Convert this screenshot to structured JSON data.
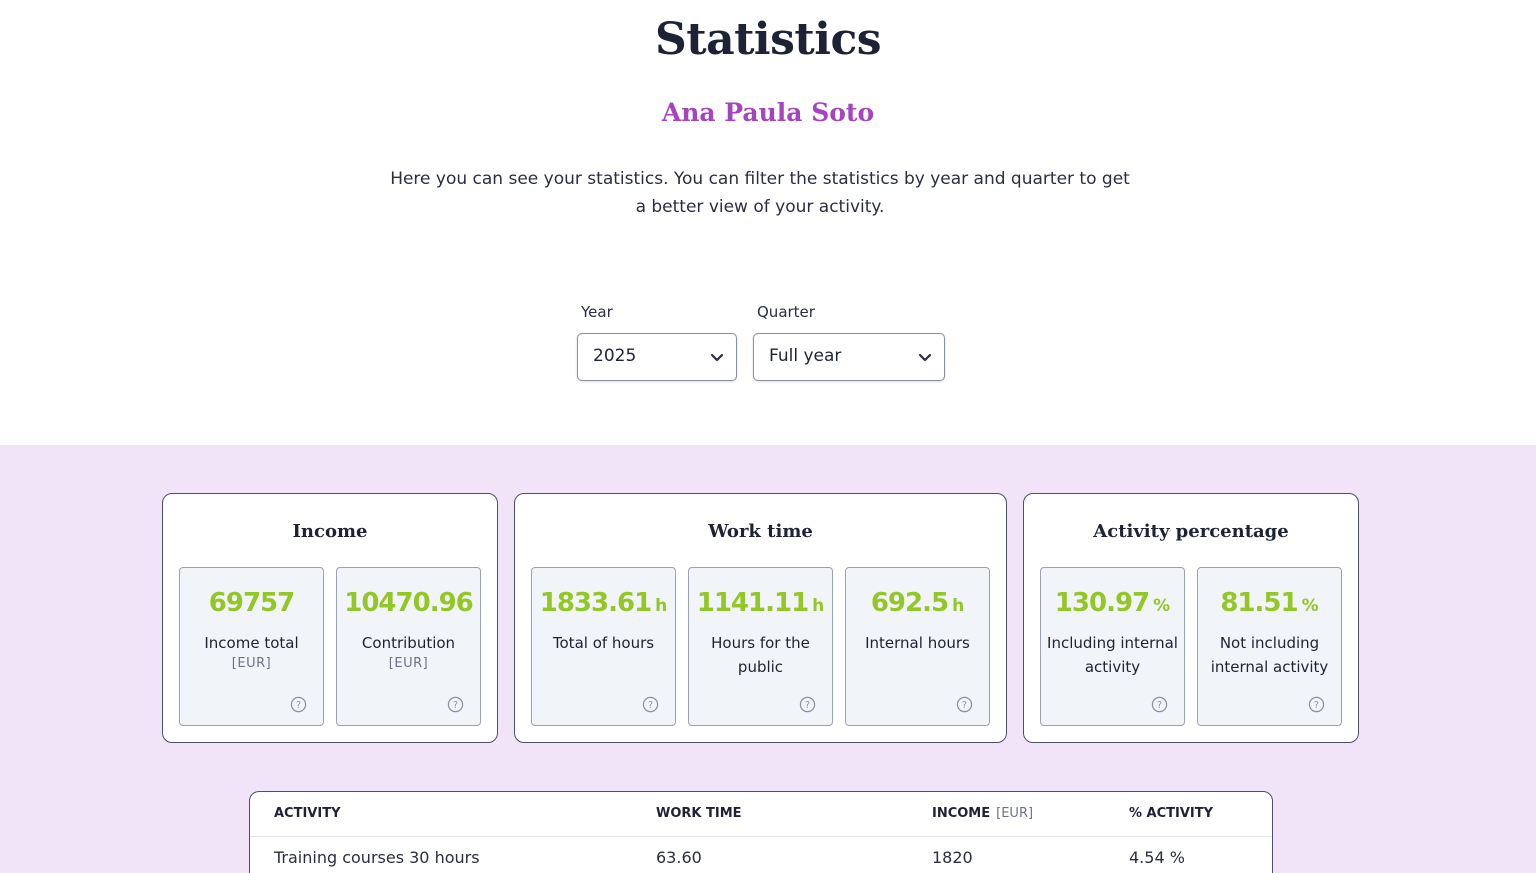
{
  "header": {
    "title": "Statistics",
    "user_name": "Ana Paula Soto",
    "intro": "Here you can see your statistics. You can filter the statistics by year and quarter to get a better view of your activity."
  },
  "filters": {
    "year": {
      "label": "Year",
      "value": "2025",
      "icon": "chevron-down-icon"
    },
    "quarter": {
      "label": "Quarter",
      "value": "Full year",
      "icon": "chevron-down-icon"
    }
  },
  "income": {
    "title": "Income",
    "cards": [
      {
        "value": "69757",
        "unit": "",
        "label": "Income total",
        "sub": "[EUR]"
      },
      {
        "value": "10470.96",
        "unit": "",
        "label": "Contribution",
        "sub": "[EUR]"
      }
    ]
  },
  "work_time": {
    "title": "Work time",
    "cards": [
      {
        "value": "1833.61",
        "unit": "h",
        "label": "Total of hours"
      },
      {
        "value": "1141.11",
        "unit": "h",
        "label": "Hours for the public"
      },
      {
        "value": "692.5",
        "unit": "h",
        "label": "Internal hours"
      }
    ]
  },
  "activity": {
    "title": "Activity percentage",
    "cards": [
      {
        "value": "130.97",
        "unit": "%",
        "label": "Including internal activity"
      },
      {
        "value": "81.51",
        "unit": "%",
        "label": "Not including internal activity"
      }
    ]
  },
  "table": {
    "headers": {
      "activity": "ACTIVITY",
      "work_time": "WORK TIME",
      "income": "INCOME",
      "income_unit": "[EUR]",
      "percent": "% ACTIVITY"
    },
    "rows": [
      {
        "activity": "Training courses 30 hours",
        "work_time": "63.60",
        "income": "1820",
        "percent": "4.54 %"
      }
    ]
  },
  "colors": {
    "accent_name": "#a543c0",
    "value_green": "#93c726",
    "band": "#f1e3f8"
  }
}
